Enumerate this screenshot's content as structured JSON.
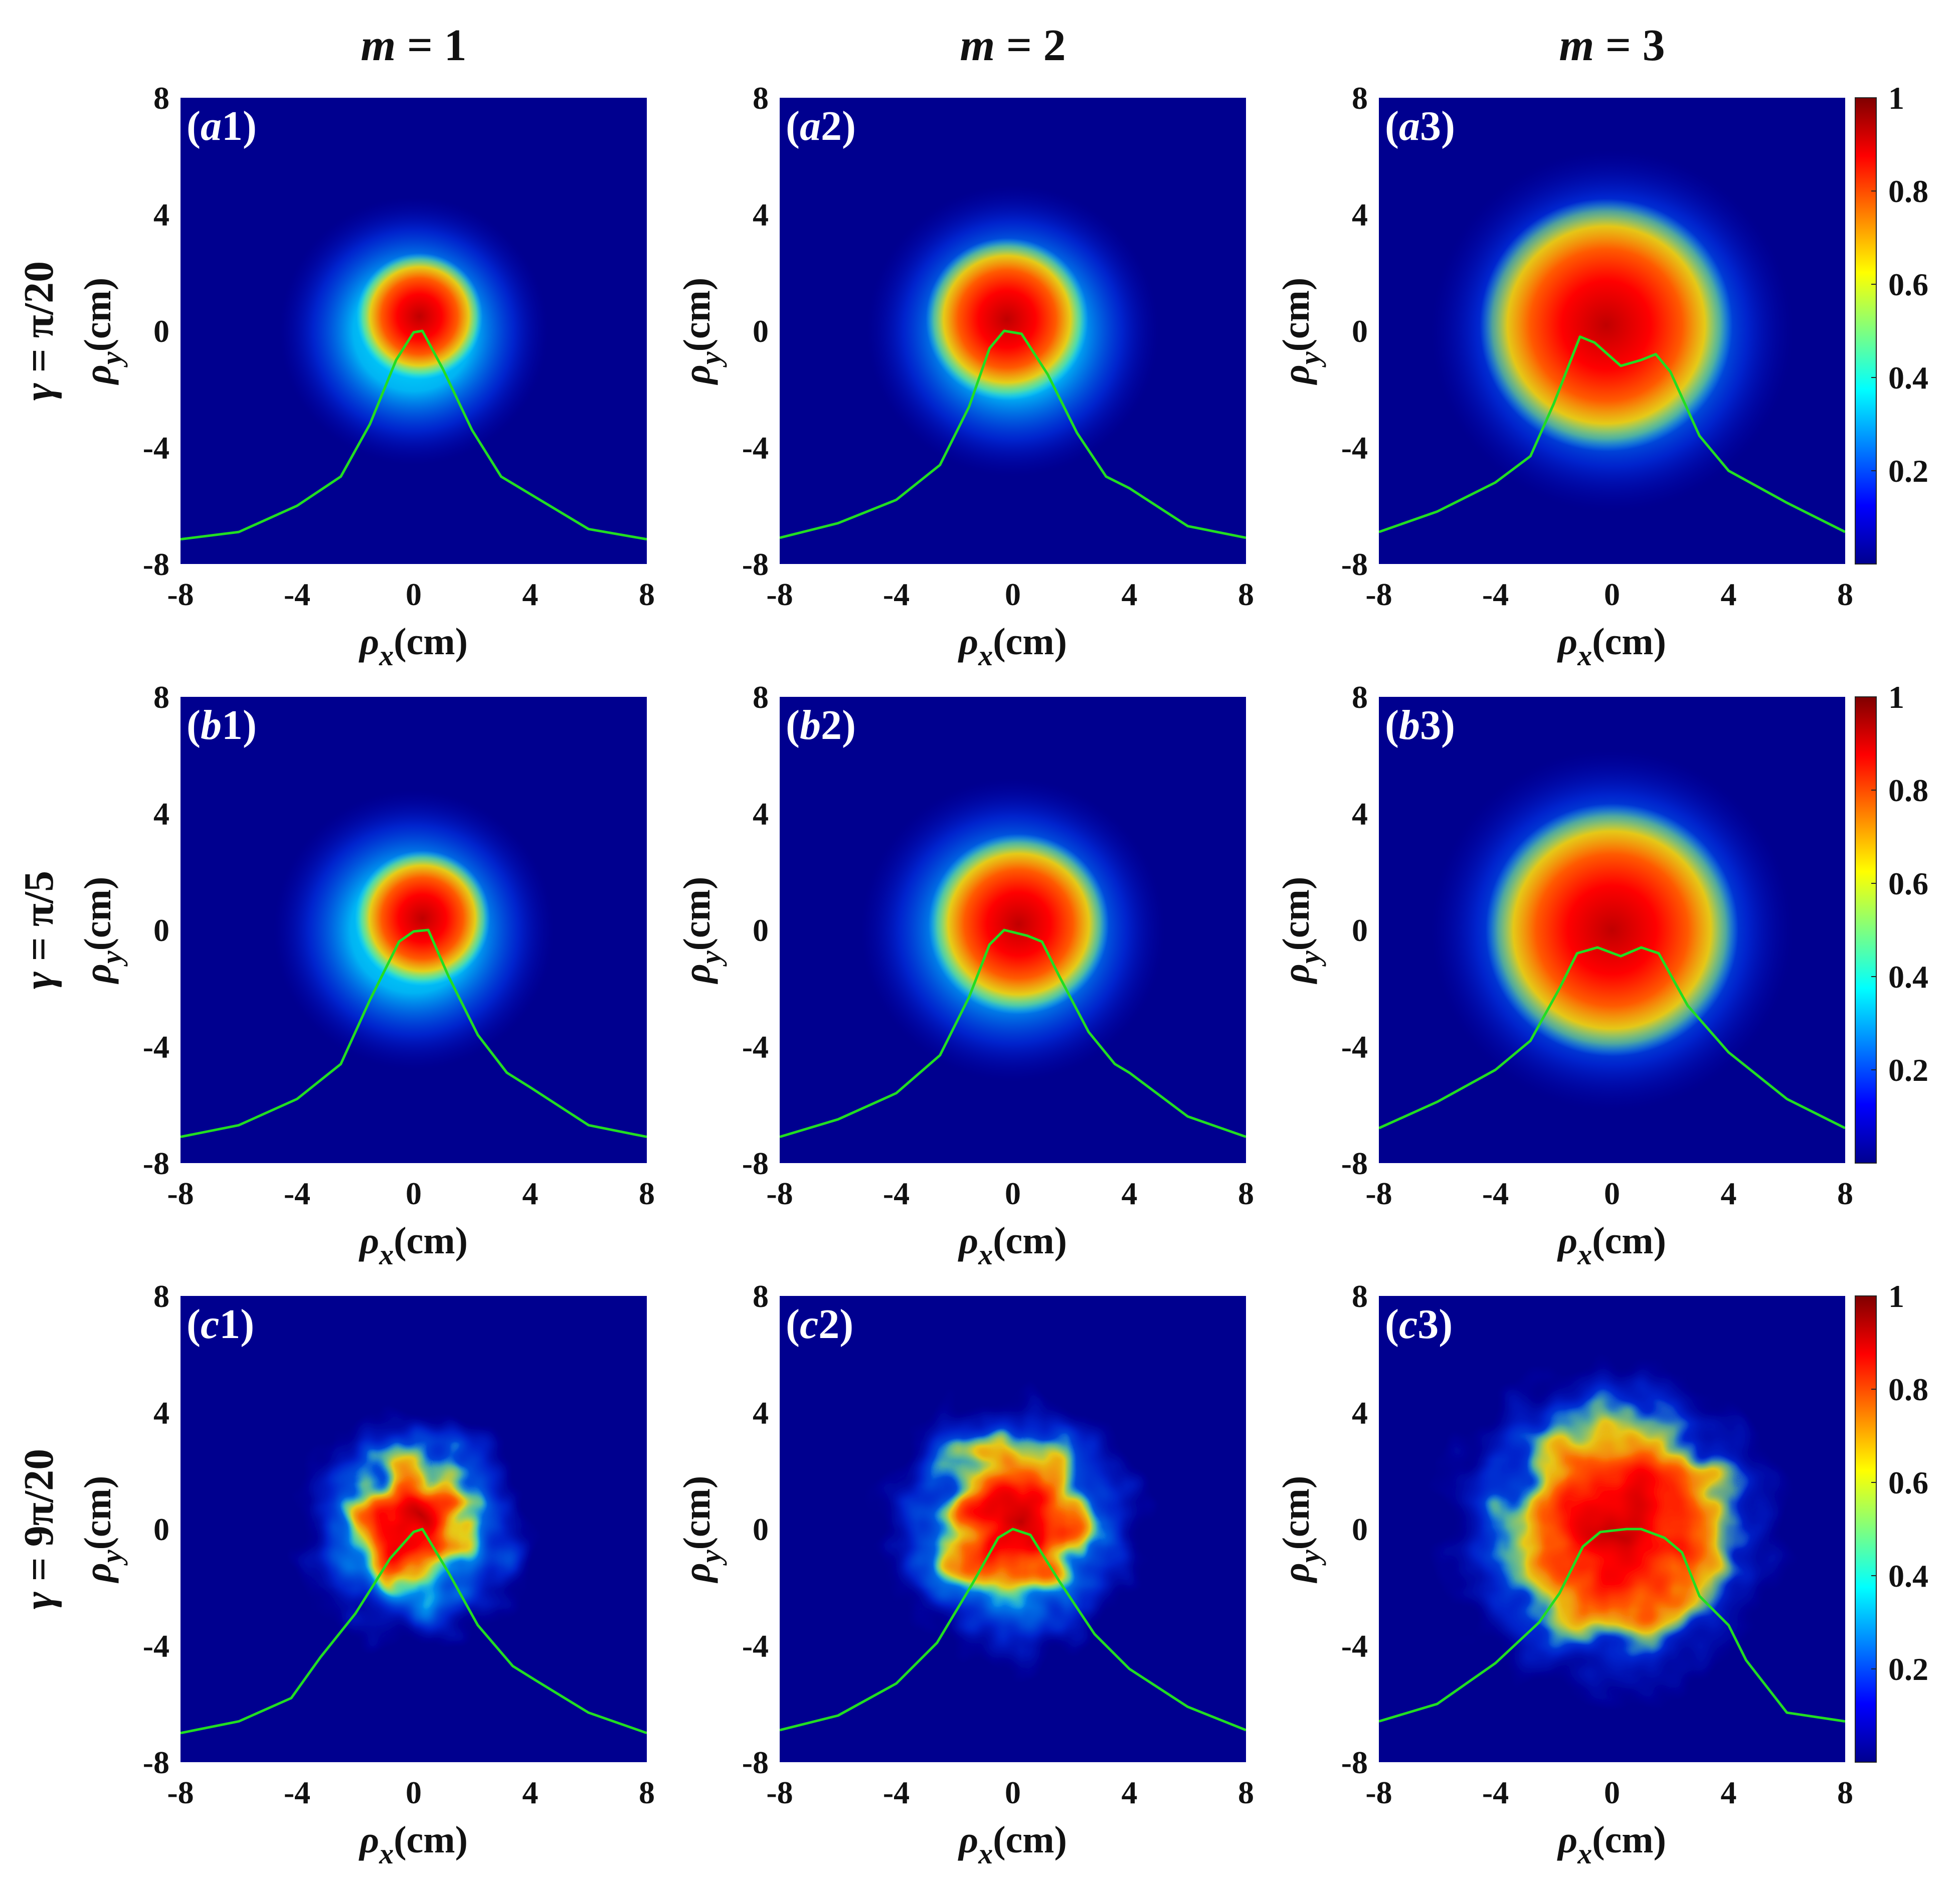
{
  "chart_data": {
    "type": "heatmap",
    "description_kind": "3x3 grid of normalized intensity maps with overlaid green horizontal profile curves",
    "column_titles": [
      {
        "var": "m",
        "eq": " = 1"
      },
      {
        "var": "m",
        "eq": " = 2"
      },
      {
        "var": "m",
        "eq": " = 3"
      }
    ],
    "row_titles": [
      {
        "var": "γ",
        "eq": " = π/20"
      },
      {
        "var": "γ",
        "eq": " = π/5"
      },
      {
        "var": "γ",
        "eq": " = 9π/20"
      }
    ],
    "xlabel": {
      "sym": "ρ",
      "sub": "x",
      "unit": "(cm)"
    },
    "ylabel": {
      "sym": "ρ",
      "sub": "y",
      "unit": "(cm)"
    },
    "xlim": [
      -8,
      8
    ],
    "ylim": [
      -8,
      8
    ],
    "xticks": [
      "-8",
      "-4",
      "0",
      "4",
      "8"
    ],
    "yticks": [
      "8",
      "4",
      "0",
      "-4",
      "-8"
    ],
    "colorbar": {
      "range": [
        0,
        1
      ],
      "ticks": [
        "1",
        "0.8",
        "0.6",
        "0.4",
        "0.2"
      ],
      "colormap": "jet"
    },
    "profile_color": "#22dd22",
    "panels": [
      {
        "label_pre": "(",
        "label_letter": "a",
        "label_post": "1)",
        "core_radius": 1.4,
        "halo_radius": 4.6,
        "core_shift": [
          0.2,
          0.5
        ],
        "noise": 0,
        "profile": [
          [
            -8,
            -7.15
          ],
          [
            -6,
            -6.9
          ],
          [
            -4,
            -6.0
          ],
          [
            -2.5,
            -5.0
          ],
          [
            -1.5,
            -3.2
          ],
          [
            -0.6,
            -1.0
          ],
          [
            0,
            -0.05
          ],
          [
            0.3,
            0.0
          ],
          [
            1.0,
            -1.3
          ],
          [
            2,
            -3.4
          ],
          [
            3,
            -5.0
          ],
          [
            4,
            -5.6
          ],
          [
            6,
            -6.8
          ],
          [
            8,
            -7.15
          ]
        ]
      },
      {
        "label_pre": "(",
        "label_letter": "a",
        "label_post": "2)",
        "core_radius": 1.8,
        "halo_radius": 5.0,
        "core_shift": [
          -0.2,
          0.4
        ],
        "noise": 0,
        "profile": [
          [
            -8,
            -7.1
          ],
          [
            -6,
            -6.6
          ],
          [
            -4,
            -5.8
          ],
          [
            -2.5,
            -4.6
          ],
          [
            -1.5,
            -2.6
          ],
          [
            -0.8,
            -0.6
          ],
          [
            -0.3,
            0.0
          ],
          [
            0.3,
            -0.1
          ],
          [
            1.2,
            -1.5
          ],
          [
            2.2,
            -3.5
          ],
          [
            3.2,
            -5.0
          ],
          [
            4,
            -5.4
          ],
          [
            6,
            -6.7
          ],
          [
            8,
            -7.1
          ]
        ]
      },
      {
        "label_pre": "(",
        "label_letter": "a",
        "label_post": "3)",
        "core_radius": 2.8,
        "halo_radius": 6.2,
        "core_shift": [
          -0.2,
          0.2
        ],
        "noise": 0,
        "profile": [
          [
            -8,
            -6.9
          ],
          [
            -6,
            -6.2
          ],
          [
            -4,
            -5.2
          ],
          [
            -2.8,
            -4.3
          ],
          [
            -2.0,
            -2.5
          ],
          [
            -1.1,
            -0.2
          ],
          [
            -0.6,
            -0.4
          ],
          [
            0.3,
            -1.2
          ],
          [
            1.0,
            -1.0
          ],
          [
            1.5,
            -0.8
          ],
          [
            2.0,
            -1.4
          ],
          [
            3.0,
            -3.6
          ],
          [
            4,
            -4.8
          ],
          [
            6,
            -5.9
          ],
          [
            8,
            -6.9
          ]
        ]
      },
      {
        "label_pre": "(",
        "label_letter": "b",
        "label_post": "1)",
        "core_radius": 1.5,
        "halo_radius": 4.8,
        "core_shift": [
          0.3,
          0.4
        ],
        "noise": 0,
        "profile": [
          [
            -8,
            -7.1
          ],
          [
            -6,
            -6.7
          ],
          [
            -4,
            -5.8
          ],
          [
            -2.5,
            -4.6
          ],
          [
            -1.5,
            -2.4
          ],
          [
            -0.5,
            -0.4
          ],
          [
            0,
            -0.05
          ],
          [
            0.5,
            0.0
          ],
          [
            1.2,
            -1.6
          ],
          [
            2.2,
            -3.6
          ],
          [
            3.2,
            -4.9
          ],
          [
            4,
            -5.4
          ],
          [
            6,
            -6.7
          ],
          [
            8,
            -7.1
          ]
        ]
      },
      {
        "label_pre": "(",
        "label_letter": "b",
        "label_post": "2)",
        "core_radius": 2.0,
        "halo_radius": 5.2,
        "core_shift": [
          0.2,
          0.2
        ],
        "noise": 0,
        "profile": [
          [
            -8,
            -7.1
          ],
          [
            -6,
            -6.5
          ],
          [
            -4,
            -5.6
          ],
          [
            -2.5,
            -4.3
          ],
          [
            -1.5,
            -2.3
          ],
          [
            -0.8,
            -0.5
          ],
          [
            -0.3,
            0.0
          ],
          [
            0.5,
            -0.2
          ],
          [
            1.0,
            -0.4
          ],
          [
            1.6,
            -1.6
          ],
          [
            2.6,
            -3.5
          ],
          [
            3.5,
            -4.6
          ],
          [
            4,
            -4.9
          ],
          [
            6,
            -6.4
          ],
          [
            8,
            -7.1
          ]
        ]
      },
      {
        "label_pre": "(",
        "label_letter": "b",
        "label_post": "3)",
        "core_radius": 2.8,
        "halo_radius": 6.2,
        "core_shift": [
          0.0,
          0.0
        ],
        "noise": 0,
        "profile": [
          [
            -8,
            -6.8
          ],
          [
            -6,
            -5.9
          ],
          [
            -4,
            -4.8
          ],
          [
            -2.8,
            -3.8
          ],
          [
            -1.8,
            -2.0
          ],
          [
            -1.2,
            -0.8
          ],
          [
            -0.5,
            -0.6
          ],
          [
            0.3,
            -0.9
          ],
          [
            1.0,
            -0.6
          ],
          [
            1.6,
            -0.8
          ],
          [
            2.6,
            -2.6
          ],
          [
            4,
            -4.2
          ],
          [
            6,
            -5.8
          ],
          [
            8,
            -6.8
          ]
        ]
      },
      {
        "label_pre": "(",
        "label_letter": "c",
        "label_post": "1)",
        "core_radius": 1.6,
        "halo_radius": 4.2,
        "core_shift": [
          0.0,
          0.3
        ],
        "noise": 1,
        "profile": [
          [
            -8,
            -7.0
          ],
          [
            -6,
            -6.6
          ],
          [
            -4.2,
            -5.8
          ],
          [
            -3.2,
            -4.4
          ],
          [
            -2.0,
            -2.9
          ],
          [
            -0.8,
            -1.0
          ],
          [
            0,
            -0.1
          ],
          [
            0.3,
            0.0
          ],
          [
            1.2,
            -1.5
          ],
          [
            2.2,
            -3.3
          ],
          [
            3.4,
            -4.7
          ],
          [
            4.2,
            -5.2
          ],
          [
            6,
            -6.3
          ],
          [
            8,
            -7.0
          ]
        ]
      },
      {
        "label_pre": "(",
        "label_letter": "c",
        "label_post": "2)",
        "core_radius": 1.9,
        "halo_radius": 4.8,
        "core_shift": [
          0.0,
          0.3
        ],
        "noise": 1,
        "profile": [
          [
            -8,
            -6.9
          ],
          [
            -6,
            -6.4
          ],
          [
            -4,
            -5.3
          ],
          [
            -2.6,
            -3.9
          ],
          [
            -1.4,
            -1.9
          ],
          [
            -0.5,
            -0.3
          ],
          [
            0,
            0.0
          ],
          [
            0.6,
            -0.2
          ],
          [
            1.6,
            -1.8
          ],
          [
            2.8,
            -3.6
          ],
          [
            4,
            -4.8
          ],
          [
            6,
            -6.1
          ],
          [
            8,
            -6.9
          ]
        ]
      },
      {
        "label_pre": "(",
        "label_letter": "c",
        "label_post": "3)",
        "core_radius": 2.8,
        "halo_radius": 6.0,
        "core_shift": [
          0.3,
          0.0
        ],
        "noise": 1,
        "profile": [
          [
            -8,
            -6.6
          ],
          [
            -6,
            -6.0
          ],
          [
            -4,
            -4.6
          ],
          [
            -2.5,
            -3.2
          ],
          [
            -1.8,
            -2.2
          ],
          [
            -1.0,
            -0.6
          ],
          [
            -0.4,
            -0.1
          ],
          [
            0.5,
            0.0
          ],
          [
            1.0,
            0.0
          ],
          [
            1.8,
            -0.3
          ],
          [
            2.4,
            -0.8
          ],
          [
            3.0,
            -2.3
          ],
          [
            4.0,
            -3.3
          ],
          [
            4.6,
            -4.5
          ],
          [
            6,
            -6.3
          ],
          [
            8,
            -6.6
          ]
        ]
      }
    ]
  }
}
